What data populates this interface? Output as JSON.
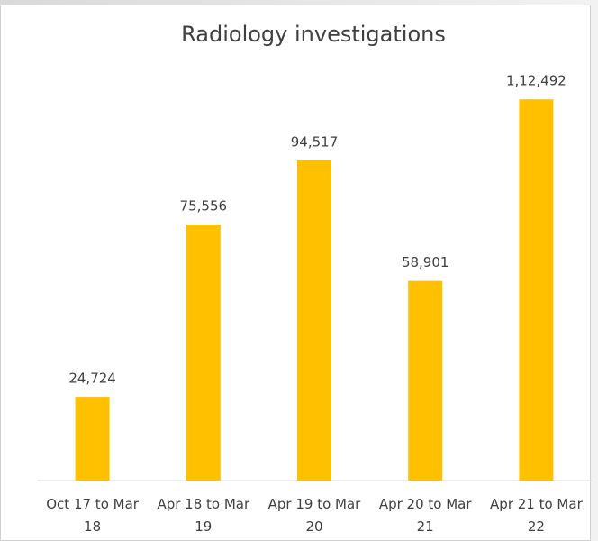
{
  "chart_data": {
    "type": "bar",
    "title": "Radiology investigations",
    "categories": [
      "Oct 17 to Mar 18",
      "Apr 18 to Mar 19",
      "Apr 19 to Mar 20",
      "Apr 20 to Mar 21",
      "Apr 21 to Mar 22"
    ],
    "values": [
      24724,
      75556,
      94517,
      58901,
      112492
    ],
    "value_labels": [
      "24,724",
      "75,556",
      "94,517",
      "58,901",
      "1,12,492"
    ],
    "color": "#ffc000",
    "ylim": [
      0,
      120000
    ]
  }
}
